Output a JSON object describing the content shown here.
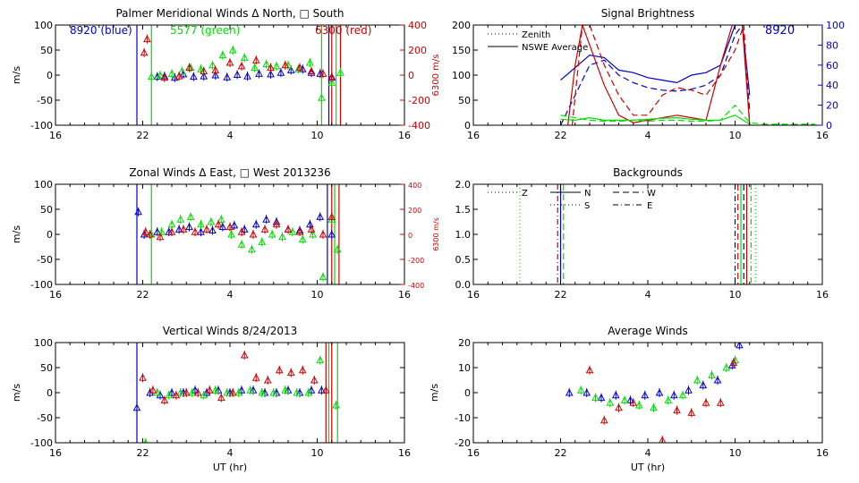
{
  "colors": {
    "blue": "#0000cc",
    "green": "#00dd00",
    "red": "#cc0000",
    "axis": "#000000"
  },
  "time_ticks": [
    "16",
    "22",
    "4",
    "10",
    "16"
  ],
  "chart_data": [
    {
      "id": "meridional",
      "type": "scatter",
      "title": "Palmer Meridional Winds Δ North, □ South",
      "xlabel": "",
      "ylabel": "m/s",
      "y2label": "6300 m/s",
      "annotations": {
        "blue": "8920 (blue)",
        "green": "5577 (green)",
        "red": "6300 (red)"
      },
      "yticks": [
        "100",
        "50",
        "0",
        "-50",
        "-100"
      ],
      "y2ticks": [
        "400",
        "200",
        "0",
        "-200",
        "-400"
      ],
      "ylim": [
        -100,
        100
      ],
      "xlim": [
        16,
        40
      ],
      "series": [
        {
          "color": "blue",
          "x": [
            23.0,
            23.5,
            24.2,
            24.8,
            25.5,
            26.2,
            27.0,
            27.8,
            28.5,
            29.2,
            30.0,
            30.8,
            31.5,
            32.2,
            33.0,
            33.6,
            34.2,
            35.0
          ],
          "y": [
            -3,
            -2,
            -5,
            2,
            -3,
            -2,
            0,
            -4,
            1,
            -2,
            3,
            2,
            5,
            10,
            12,
            5,
            3,
            -5
          ]
        },
        {
          "color": "green",
          "x": [
            22.6,
            23.2,
            24.0,
            24.7,
            25.3,
            26.0,
            26.8,
            27.5,
            28.2,
            29.0,
            29.7,
            30.5,
            31.2,
            32.0,
            32.7,
            33.5,
            34.3,
            35.0,
            35.6
          ],
          "y": [
            -3,
            0,
            3,
            8,
            15,
            12,
            20,
            40,
            50,
            35,
            15,
            22,
            18,
            20,
            12,
            25,
            -45,
            -15,
            5
          ]
        },
        {
          "color": "red",
          "x": [
            22.1,
            22.3,
            23.5,
            24.5,
            25.2,
            26.2,
            27.0,
            28.0,
            28.8,
            29.8,
            30.8,
            31.8,
            32.8,
            33.6,
            34.4,
            35.0
          ],
          "y": [
            45,
            72,
            -5,
            -2,
            15,
            8,
            10,
            25,
            18,
            30,
            15,
            20,
            15,
            8,
            3,
            -3
          ]
        }
      ],
      "vlines": [
        {
          "color": "blue",
          "x": 21.6
        },
        {
          "color": "green",
          "x": 22.6
        },
        {
          "color": "green",
          "x": 34.3
        },
        {
          "color": "blue",
          "x": 34.8
        },
        {
          "color": "red",
          "x": 35.0
        },
        {
          "color": "green",
          "x": 35.3
        },
        {
          "color": "red",
          "x": 35.6
        }
      ]
    },
    {
      "id": "brightness",
      "type": "line",
      "title": "Signal Brightness",
      "xlabel": "",
      "ylabel": "",
      "annotations": {
        "instrument": "8920"
      },
      "legend": [
        {
          "label": "Zenith",
          "style": "dotted"
        },
        {
          "label": "NSWE Average",
          "style": "solid"
        }
      ],
      "yticks": [
        "200",
        "150",
        "100",
        "50",
        "0"
      ],
      "y2ticks": [
        "100",
        "80",
        "60",
        "40",
        "20",
        "0"
      ],
      "ylim": [
        0,
        200
      ],
      "y2lim": [
        0,
        100
      ],
      "xlim": [
        16,
        40
      ],
      "series": [
        {
          "color": "blue",
          "style": "solid",
          "x": [
            22.0,
            23.0,
            24.0,
            25.0,
            26.0,
            27.0,
            28.0,
            29.0,
            30.0,
            31.0,
            32.0,
            33.0,
            34.0,
            34.5,
            35.0
          ],
          "y": [
            90,
            115,
            140,
            135,
            110,
            105,
            95,
            90,
            85,
            100,
            105,
            120,
            200,
            200,
            60
          ]
        },
        {
          "color": "blue",
          "style": "dashed",
          "x": [
            22.0,
            23.0,
            24.0,
            25.0,
            26.0,
            27.0,
            28.0,
            29.0,
            30.0,
            31.0,
            32.0,
            33.0,
            34.0,
            34.5,
            35.0
          ],
          "y": [
            0,
            60,
            120,
            130,
            100,
            85,
            75,
            70,
            68,
            72,
            80,
            100,
            180,
            200,
            30
          ]
        },
        {
          "color": "red",
          "style": "solid",
          "x": [
            22.5,
            23.0,
            23.5,
            24.0,
            25.0,
            26.0,
            27.0,
            28.0,
            29.0,
            30.0,
            31.0,
            32.0,
            33.0,
            33.8,
            34.5,
            35.0
          ],
          "y": [
            0,
            120,
            200,
            160,
            80,
            20,
            5,
            10,
            15,
            20,
            15,
            10,
            120,
            200,
            200,
            0
          ]
        },
        {
          "color": "red",
          "style": "dashed",
          "x": [
            22.8,
            23.5,
            24.0,
            25.0,
            26.0,
            27.0,
            28.0,
            29.0,
            30.0,
            31.0,
            32.0,
            33.0,
            34.0,
            34.6,
            35.0
          ],
          "y": [
            0,
            200,
            200,
            120,
            60,
            20,
            20,
            60,
            75,
            70,
            60,
            100,
            150,
            200,
            0
          ]
        },
        {
          "color": "green",
          "style": "solid",
          "x": [
            22.0,
            23.0,
            24.0,
            25.0,
            26.0,
            27.0,
            28.0,
            29.0,
            30.0,
            31.0,
            32.0,
            33.0,
            34.0,
            35.0
          ],
          "y": [
            12,
            10,
            15,
            10,
            10,
            10,
            12,
            14,
            15,
            12,
            10,
            10,
            20,
            2
          ]
        },
        {
          "color": "green",
          "style": "dashed",
          "x": [
            22.0,
            23.0,
            24.0,
            25.0,
            26.0,
            27.0,
            28.0,
            29.0,
            30.0,
            31.0,
            32.0,
            33.0,
            34.0,
            35.0,
            36.0,
            39.5
          ],
          "y": [
            20,
            15,
            10,
            8,
            8,
            10,
            8,
            10,
            10,
            8,
            8,
            10,
            40,
            5,
            2,
            2
          ]
        }
      ]
    },
    {
      "id": "zonal",
      "type": "scatter",
      "title": "Zonal Winds Δ East, □ West 2013236",
      "xlabel": "",
      "ylabel": "m/s",
      "y2label": "6300 m/s",
      "yticks": [
        "100",
        "50",
        "0",
        "-50",
        "-100"
      ],
      "y2ticks": [
        "400",
        "200",
        "0",
        "-200",
        "-400"
      ],
      "ylim": [
        -100,
        100
      ],
      "xlim": [
        16,
        40
      ],
      "series": [
        {
          "color": "blue",
          "x": [
            21.7,
            22.1,
            23.0,
            23.8,
            24.5,
            25.2,
            26.0,
            26.8,
            27.5,
            28.3,
            29.0,
            29.8,
            30.5,
            31.2,
            32.0,
            32.8,
            33.5,
            34.2,
            35.0
          ],
          "y": [
            45,
            0,
            5,
            5,
            10,
            15,
            5,
            8,
            15,
            18,
            10,
            20,
            30,
            25,
            10,
            8,
            20,
            35,
            0
          ]
        },
        {
          "color": "green",
          "x": [
            22.6,
            23.3,
            24.0,
            24.6,
            25.3,
            26.0,
            26.7,
            27.4,
            28.1,
            28.8,
            29.5,
            30.2,
            30.9,
            31.6,
            32.3,
            33.0,
            33.7,
            34.4,
            35.0,
            35.4
          ],
          "y": [
            0,
            5,
            20,
            30,
            35,
            20,
            25,
            30,
            0,
            -20,
            -30,
            -15,
            0,
            -5,
            5,
            -10,
            0,
            -85,
            30,
            -30
          ]
        },
        {
          "color": "red",
          "x": [
            22.2,
            22.5,
            23.2,
            24.0,
            24.8,
            25.6,
            26.4,
            27.2,
            28.0,
            28.8,
            29.6,
            30.4,
            31.2,
            32.0,
            32.8,
            33.6,
            34.4,
            35.0
          ],
          "y": [
            5,
            0,
            -5,
            5,
            10,
            5,
            10,
            20,
            15,
            5,
            0,
            10,
            20,
            10,
            5,
            10,
            0,
            35
          ]
        }
      ],
      "vlines": [
        {
          "color": "blue",
          "x": 21.6
        },
        {
          "color": "green",
          "x": 22.6
        },
        {
          "color": "blue",
          "x": 34.7
        },
        {
          "color": "red",
          "x": 35.0
        },
        {
          "color": "green",
          "x": 35.2
        },
        {
          "color": "red",
          "x": 35.5
        }
      ]
    },
    {
      "id": "backgrounds",
      "type": "line",
      "title": "Backgrounds",
      "xlabel": "",
      "ylabel": "",
      "legend": [
        {
          "label": "Z",
          "style": "dotted"
        },
        {
          "label": "N",
          "style": "solid"
        },
        {
          "label": "W",
          "style": "dashed"
        },
        {
          "label": "S",
          "style": "dotted"
        },
        {
          "label": "E",
          "style": "dashdot"
        }
      ],
      "yticks": [
        "2.0",
        "1.5",
        "1.0",
        "0.5",
        "0.0"
      ],
      "ylim": [
        0,
        2
      ],
      "xlim": [
        16,
        40
      ],
      "vlines": [
        {
          "color": "green",
          "x": 19.2,
          "style": "dotted"
        },
        {
          "color": "red",
          "x": 21.8,
          "style": "dashdot"
        },
        {
          "color": "blue",
          "x": 22.0,
          "style": "solid"
        },
        {
          "color": "green",
          "x": 22.2,
          "style": "dashed"
        },
        {
          "color": "blue",
          "x": 34.0,
          "style": "dashdot"
        },
        {
          "color": "red",
          "x": 34.2,
          "style": "dashed"
        },
        {
          "color": "green",
          "x": 34.4,
          "style": "solid"
        },
        {
          "color": "blue",
          "x": 34.6,
          "style": "dashed"
        },
        {
          "color": "red",
          "x": 34.8,
          "style": "solid"
        },
        {
          "color": "green",
          "x": 35.1,
          "style": "dashdot"
        },
        {
          "color": "green",
          "x": 35.4,
          "style": "dotted"
        }
      ]
    },
    {
      "id": "vertical",
      "type": "scatter",
      "title": "Vertical Winds 8/24/2013",
      "xlabel": "UT (hr)",
      "ylabel": "m/s",
      "yticks": [
        "100",
        "50",
        "0",
        "-50",
        "-100"
      ],
      "ylim": [
        -100,
        100
      ],
      "xlim": [
        16,
        40
      ],
      "series": [
        {
          "color": "blue",
          "x": [
            21.6,
            22.5,
            23.2,
            24.0,
            24.8,
            25.6,
            26.4,
            27.2,
            28.0,
            28.8,
            29.6,
            30.4,
            31.2,
            32.0,
            32.8,
            33.6,
            34.3
          ],
          "y": [
            -30,
            0,
            -5,
            0,
            0,
            5,
            0,
            5,
            0,
            5,
            5,
            0,
            0,
            5,
            0,
            5,
            5
          ]
        },
        {
          "color": "green",
          "x": [
            22.2,
            23.0,
            23.8,
            24.6,
            25.4,
            26.2,
            27.0,
            27.8,
            28.6,
            29.4,
            30.2,
            31.0,
            31.8,
            32.6,
            33.4,
            34.2,
            35.3
          ],
          "y": [
            -100,
            0,
            -5,
            0,
            0,
            -5,
            5,
            0,
            0,
            5,
            0,
            0,
            5,
            0,
            0,
            65,
            -25
          ]
        },
        {
          "color": "red",
          "x": [
            22.0,
            22.7,
            23.5,
            24.3,
            25.0,
            25.8,
            26.6,
            27.4,
            28.2,
            29.0,
            29.8,
            30.6,
            31.4,
            32.2,
            33.0,
            33.8,
            34.6
          ],
          "y": [
            30,
            5,
            -15,
            -5,
            0,
            0,
            5,
            -10,
            0,
            75,
            30,
            25,
            45,
            40,
            45,
            25,
            5
          ]
        }
      ],
      "vlines": [
        {
          "color": "blue",
          "x": 21.6
        },
        {
          "color": "red",
          "x": 34.6
        },
        {
          "color": "green",
          "x": 34.8
        },
        {
          "color": "red",
          "x": 35.0
        },
        {
          "color": "green",
          "x": 35.4
        }
      ]
    },
    {
      "id": "average",
      "type": "scatter",
      "title": "Average Winds",
      "xlabel": "UT (hr)",
      "ylabel": "m/s",
      "yticks": [
        "20",
        "10",
        "0",
        "-10",
        "-20"
      ],
      "ylim": [
        -20,
        20
      ],
      "xlim": [
        16,
        40
      ],
      "series": [
        {
          "color": "blue",
          "x": [
            22.6,
            23.8,
            24.8,
            25.8,
            26.8,
            27.8,
            28.8,
            29.8,
            30.8,
            31.8,
            32.8,
            33.8,
            34.3
          ],
          "y": [
            0,
            0,
            -2,
            -1,
            -3,
            -1,
            0,
            -1,
            1,
            3,
            5,
            11,
            19
          ]
        },
        {
          "color": "green",
          "x": [
            23.4,
            24.4,
            25.4,
            26.4,
            27.4,
            28.4,
            29.4,
            30.4,
            31.4,
            32.4,
            33.4,
            34.0
          ],
          "y": [
            1,
            -2,
            -4,
            -3,
            -5,
            -6,
            -3,
            -1,
            5,
            7,
            10,
            13
          ]
        },
        {
          "color": "red",
          "x": [
            24.0,
            25.0,
            26.0,
            27.0,
            28.0,
            29.0,
            30.0,
            31.0,
            32.0,
            33.0,
            33.9
          ],
          "y": [
            9,
            -11,
            -6,
            -4,
            -21,
            -19,
            -7,
            -8,
            -4,
            -4,
            12
          ]
        }
      ]
    }
  ]
}
